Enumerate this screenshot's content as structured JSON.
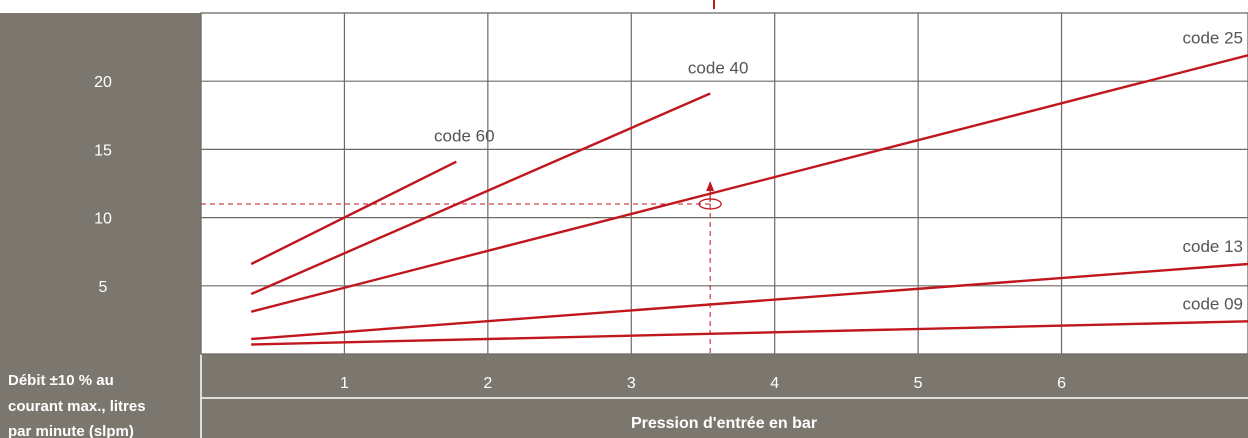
{
  "colors": {
    "panel": "#7b776e",
    "grid": "#6d6a65",
    "line": "#c0161e",
    "panel_text": "#ffffff",
    "label_text": "#555555"
  },
  "chart_data": {
    "type": "line",
    "ylabel": "Débit ±10 % au courant max., litres par minute (slpm)",
    "xlabel": "Pression d'entrée en bar",
    "x_ticks": [
      1,
      2,
      3,
      4,
      5,
      6
    ],
    "y_ticks": [
      5,
      10,
      15,
      20
    ],
    "xlim": [
      0,
      7.3
    ],
    "ylim": [
      0,
      25
    ],
    "grid": true,
    "series": [
      {
        "name": "code 60",
        "points": [
          [
            0.35,
            6.6
          ],
          [
            1.78,
            14.1
          ]
        ]
      },
      {
        "name": "code 40",
        "points": [
          [
            0.35,
            4.4
          ],
          [
            3.55,
            19.1
          ]
        ]
      },
      {
        "name": "code 25",
        "points": [
          [
            0.35,
            3.1
          ],
          [
            7.3,
            21.9
          ]
        ]
      },
      {
        "name": "code 13",
        "points": [
          [
            0.35,
            1.1
          ],
          [
            7.3,
            6.6
          ]
        ]
      },
      {
        "name": "code 09",
        "points": [
          [
            0.35,
            0.7
          ],
          [
            7.3,
            2.4
          ]
        ]
      }
    ],
    "reference": {
      "x": 3.55,
      "y": 11.0
    }
  }
}
